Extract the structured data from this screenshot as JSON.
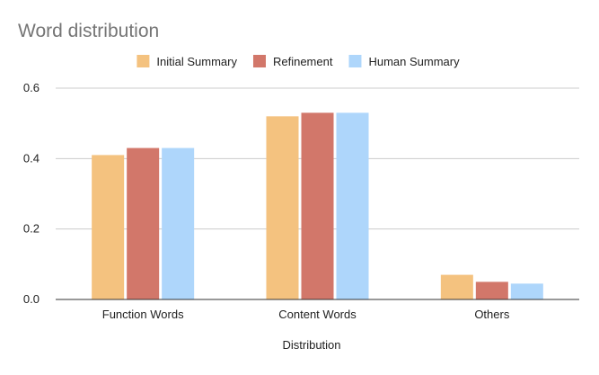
{
  "chart_data": {
    "type": "bar",
    "title": "Word distribution",
    "xlabel": "Distribution",
    "ylabel": "",
    "categories": [
      "Function Words",
      "Content Words",
      "Others"
    ],
    "series": [
      {
        "name": "Initial Summary",
        "color": "#f4c27f",
        "values": [
          0.41,
          0.52,
          0.07
        ]
      },
      {
        "name": "Refinement",
        "color": "#d2776a",
        "values": [
          0.43,
          0.53,
          0.05
        ]
      },
      {
        "name": "Human Summary",
        "color": "#aed6fb",
        "values": [
          0.43,
          0.53,
          0.045
        ]
      }
    ],
    "ylim": [
      0,
      0.6
    ],
    "yticks": [
      0,
      0.2,
      0.4,
      0.6
    ],
    "ytick_labels": [
      "0.0",
      "0.2",
      "0.4",
      "0.6"
    ],
    "grid": true,
    "legend_position": "top"
  }
}
